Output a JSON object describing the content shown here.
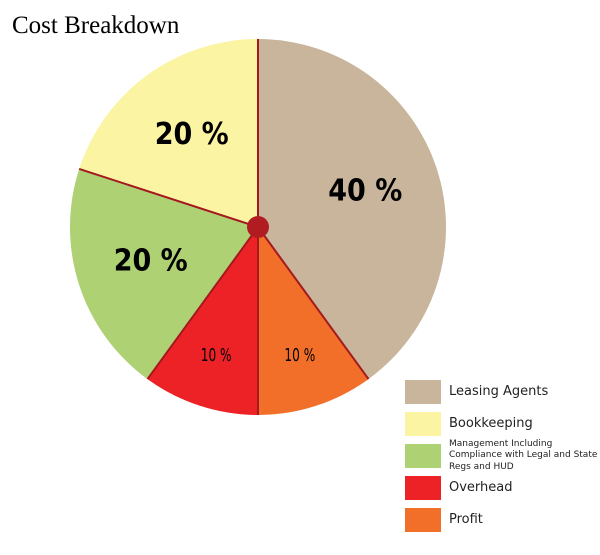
{
  "chart_data": {
    "type": "pie",
    "title": "Cost Breakdown",
    "categories": [
      "Leasing Agents",
      "Bookkeeping",
      "Management Including Compliance with Legal and State Regs and HUD",
      "Overhead",
      "Profit"
    ],
    "values": [
      40,
      20,
      20,
      10,
      10
    ],
    "value_labels": [
      "40 %",
      "20 %",
      "20 %",
      "10 %",
      "10 %"
    ],
    "colors": [
      "#c8b59b",
      "#fbf4a2",
      "#aed173",
      "#ed2227",
      "#f26f2a"
    ]
  }
}
